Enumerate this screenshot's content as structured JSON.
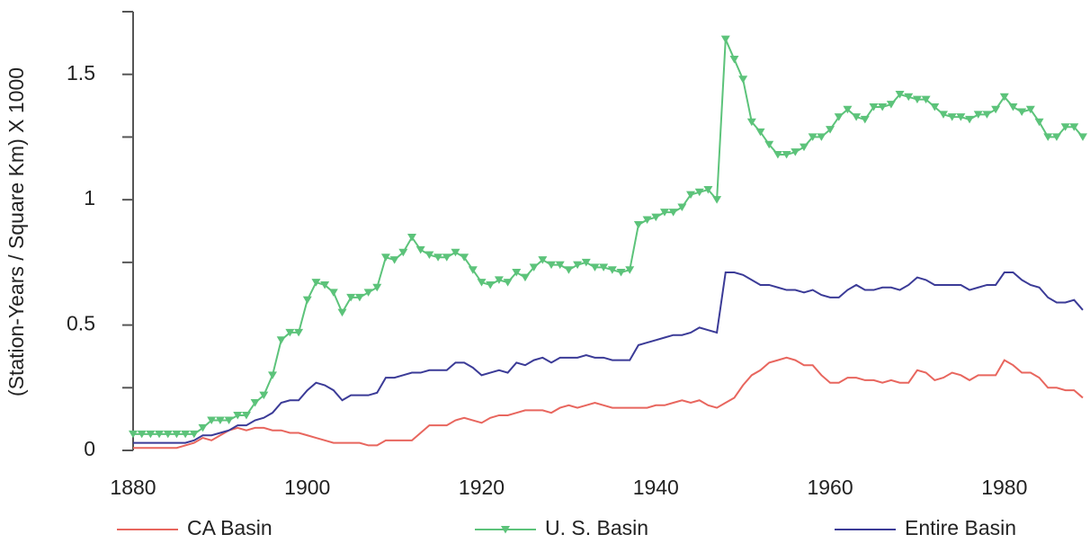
{
  "chart_data": {
    "type": "line",
    "ylabel": "(Station-Years / Square Km) X 1000",
    "x": [
      1880,
      1881,
      1882,
      1883,
      1884,
      1885,
      1886,
      1887,
      1888,
      1889,
      1890,
      1891,
      1892,
      1893,
      1894,
      1895,
      1896,
      1897,
      1898,
      1899,
      1900,
      1901,
      1902,
      1903,
      1904,
      1905,
      1906,
      1907,
      1908,
      1909,
      1910,
      1911,
      1912,
      1913,
      1914,
      1915,
      1916,
      1917,
      1918,
      1919,
      1920,
      1921,
      1922,
      1923,
      1924,
      1925,
      1926,
      1927,
      1928,
      1929,
      1930,
      1931,
      1932,
      1933,
      1934,
      1935,
      1936,
      1937,
      1938,
      1939,
      1940,
      1941,
      1942,
      1943,
      1944,
      1945,
      1946,
      1947,
      1948,
      1949,
      1950,
      1951,
      1952,
      1953,
      1954,
      1955,
      1956,
      1957,
      1958,
      1959,
      1960,
      1961,
      1962,
      1963,
      1964,
      1965,
      1966,
      1967,
      1968,
      1969,
      1970,
      1971,
      1972,
      1973,
      1974,
      1975,
      1976,
      1977,
      1978,
      1979,
      1980,
      1981,
      1982,
      1983,
      1984,
      1985,
      1986,
      1987,
      1988,
      1989
    ],
    "series": [
      {
        "name": "CA Basin",
        "color": "#e8665e",
        "marker": null,
        "values": [
          0.01,
          0.01,
          0.01,
          0.01,
          0.01,
          0.01,
          0.02,
          0.03,
          0.05,
          0.04,
          0.06,
          0.08,
          0.09,
          0.08,
          0.09,
          0.09,
          0.08,
          0.08,
          0.07,
          0.07,
          0.06,
          0.05,
          0.04,
          0.03,
          0.03,
          0.03,
          0.03,
          0.02,
          0.02,
          0.04,
          0.04,
          0.04,
          0.04,
          0.07,
          0.1,
          0.1,
          0.1,
          0.12,
          0.13,
          0.12,
          0.11,
          0.13,
          0.14,
          0.14,
          0.15,
          0.16,
          0.16,
          0.16,
          0.15,
          0.17,
          0.18,
          0.17,
          0.18,
          0.19,
          0.18,
          0.17,
          0.17,
          0.17,
          0.17,
          0.17,
          0.18,
          0.18,
          0.19,
          0.2,
          0.19,
          0.2,
          0.18,
          0.17,
          0.19,
          0.21,
          0.26,
          0.3,
          0.32,
          0.35,
          0.36,
          0.37,
          0.36,
          0.34,
          0.34,
          0.3,
          0.27,
          0.27,
          0.29,
          0.29,
          0.28,
          0.28,
          0.27,
          0.28,
          0.27,
          0.27,
          0.32,
          0.31,
          0.28,
          0.29,
          0.31,
          0.3,
          0.28,
          0.3,
          0.3,
          0.3,
          0.36,
          0.34,
          0.31,
          0.31,
          0.29,
          0.25,
          0.25,
          0.24,
          0.24,
          0.21
        ]
      },
      {
        "name": "U. S. Basin",
        "color": "#5cc37a",
        "marker": "triangle-down",
        "values": [
          0.065,
          0.065,
          0.065,
          0.065,
          0.065,
          0.065,
          0.065,
          0.065,
          0.09,
          0.12,
          0.12,
          0.12,
          0.14,
          0.14,
          0.19,
          0.22,
          0.3,
          0.44,
          0.47,
          0.47,
          0.6,
          0.67,
          0.66,
          0.63,
          0.55,
          0.61,
          0.61,
          0.63,
          0.65,
          0.77,
          0.76,
          0.79,
          0.85,
          0.8,
          0.78,
          0.77,
          0.77,
          0.79,
          0.77,
          0.72,
          0.67,
          0.66,
          0.68,
          0.67,
          0.71,
          0.69,
          0.73,
          0.76,
          0.74,
          0.74,
          0.72,
          0.74,
          0.75,
          0.73,
          0.73,
          0.72,
          0.71,
          0.72,
          0.9,
          0.92,
          0.93,
          0.95,
          0.95,
          0.97,
          1.02,
          1.03,
          1.04,
          1.0,
          1.64,
          1.56,
          1.48,
          1.31,
          1.27,
          1.22,
          1.18,
          1.18,
          1.19,
          1.21,
          1.25,
          1.25,
          1.28,
          1.33,
          1.36,
          1.33,
          1.32,
          1.37,
          1.37,
          1.38,
          1.42,
          1.41,
          1.4,
          1.4,
          1.37,
          1.34,
          1.33,
          1.33,
          1.32,
          1.34,
          1.34,
          1.36,
          1.41,
          1.37,
          1.35,
          1.36,
          1.31,
          1.25,
          1.25,
          1.29,
          1.29,
          1.25
        ]
      },
      {
        "name": "Entire Basin",
        "color": "#3b3b97",
        "marker": null,
        "values": [
          0.03,
          0.03,
          0.03,
          0.03,
          0.03,
          0.03,
          0.03,
          0.04,
          0.06,
          0.06,
          0.07,
          0.08,
          0.1,
          0.1,
          0.12,
          0.13,
          0.15,
          0.19,
          0.2,
          0.2,
          0.24,
          0.27,
          0.26,
          0.24,
          0.2,
          0.22,
          0.22,
          0.22,
          0.23,
          0.29,
          0.29,
          0.3,
          0.31,
          0.31,
          0.32,
          0.32,
          0.32,
          0.35,
          0.35,
          0.33,
          0.3,
          0.31,
          0.32,
          0.31,
          0.35,
          0.34,
          0.36,
          0.37,
          0.35,
          0.37,
          0.37,
          0.37,
          0.38,
          0.37,
          0.37,
          0.36,
          0.36,
          0.36,
          0.42,
          0.43,
          0.44,
          0.45,
          0.46,
          0.46,
          0.47,
          0.49,
          0.48,
          0.47,
          0.71,
          0.71,
          0.7,
          0.68,
          0.66,
          0.66,
          0.65,
          0.64,
          0.64,
          0.63,
          0.64,
          0.62,
          0.61,
          0.61,
          0.64,
          0.66,
          0.64,
          0.64,
          0.65,
          0.65,
          0.64,
          0.66,
          0.69,
          0.68,
          0.66,
          0.66,
          0.66,
          0.66,
          0.64,
          0.65,
          0.66,
          0.66,
          0.71,
          0.71,
          0.68,
          0.66,
          0.65,
          0.61,
          0.59,
          0.59,
          0.6,
          0.56
        ]
      }
    ],
    "xlim": [
      1880,
      1989
    ],
    "xticks": [
      1880,
      1900,
      1920,
      1940,
      1960,
      1980
    ],
    "ylim": [
      0,
      1.75
    ],
    "yticks": [
      0,
      0.5,
      1,
      1.5
    ],
    "minor_yticks": [
      0.25,
      0.75,
      1.25,
      1.75
    ],
    "legend": "bottom"
  }
}
